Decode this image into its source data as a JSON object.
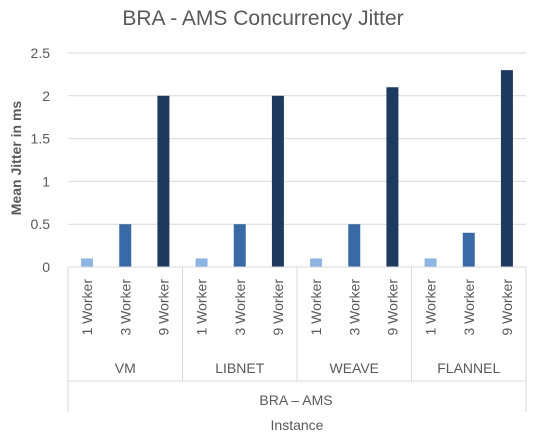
{
  "chart_data": {
    "type": "bar",
    "title": "BRA - AMS Concurrency Jitter",
    "ylabel": "Mean Jitter in ms",
    "xlabel": "Instance",
    "outer_group": "BRA – AMS",
    "groups": [
      "VM",
      "LIBNET",
      "WEAVE",
      "FLANNEL"
    ],
    "categories": [
      "1 Worker",
      "3 Worker",
      "9 Worker"
    ],
    "values": [
      [
        0.1,
        0.5,
        2.0
      ],
      [
        0.1,
        0.5,
        2.0
      ],
      [
        0.1,
        0.5,
        2.1
      ],
      [
        0.1,
        0.4,
        2.3
      ]
    ],
    "bar_colors": [
      "#8eb4e3",
      "#3a6aa6",
      "#1f3a5f"
    ],
    "ylim": [
      0,
      2.5
    ],
    "y_ticks": [
      "0",
      "0.5",
      "1",
      "1.5",
      "2",
      "2.5"
    ],
    "grid": true,
    "legend": "none"
  }
}
